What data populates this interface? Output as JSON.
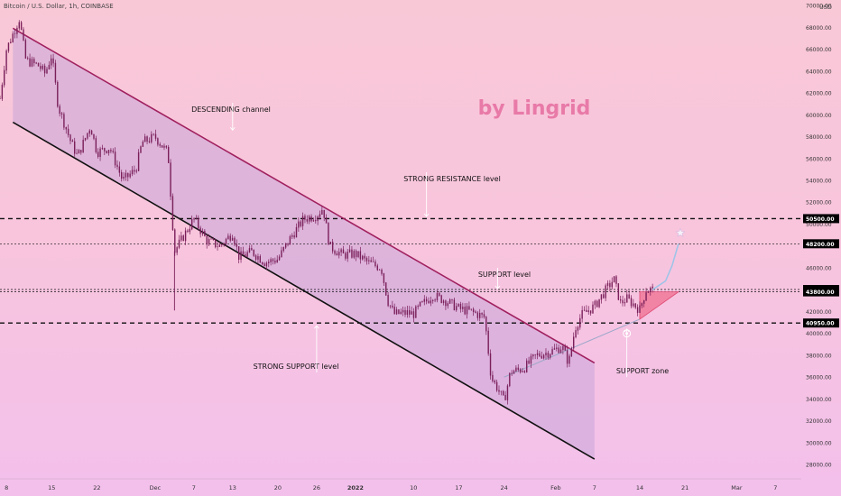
{
  "header": {
    "symbol_line": "Bitcoin / U.S. Dollar, 1h, COINBASE",
    "currency": "USD"
  },
  "watermark": {
    "text": "by Lingrid",
    "color": "#e87aa8"
  },
  "colors": {
    "candle": "#7a1f5a",
    "channel_upper": "#a0205f",
    "channel_lower": "#111111",
    "channel_fill": "#c9a6d8",
    "triangle": "#ef6f8f",
    "projection": "#9fc4e8"
  },
  "chart_data": {
    "type": "candlestick",
    "instrument": "Bitcoin / U.S. Dollar",
    "interval": "1h",
    "exchange": "COINBASE",
    "ylim": [
      27600,
      70500
    ],
    "y_ticks": [
      28000,
      30000,
      32000,
      34000,
      36000,
      38000,
      40000,
      42000,
      44000,
      46000,
      48000,
      50000,
      52000,
      54000,
      56000,
      58000,
      60000,
      62000,
      64000,
      66000,
      68000,
      70000
    ],
    "y_tick_labels": [
      "28000.00",
      "30000.00",
      "32000.00",
      "34000.00",
      "36000.00",
      "38000.00",
      "40000.00",
      "42000.00",
      "44000.00",
      "46000.00",
      "48000.00",
      "50000.00",
      "52000.00",
      "54000.00",
      "56000.00",
      "58000.00",
      "60000.00",
      "62000.00",
      "64000.00",
      "66000.00",
      "68000.00",
      "70000.00"
    ],
    "x_ticks": [
      {
        "label": "8",
        "date": "2021-11-08"
      },
      {
        "label": "15",
        "date": "2021-11-15"
      },
      {
        "label": "22",
        "date": "2021-11-22"
      },
      {
        "label": "Dec",
        "date": "2021-12-01"
      },
      {
        "label": "7",
        "date": "2021-12-07"
      },
      {
        "label": "13",
        "date": "2021-12-13"
      },
      {
        "label": "20",
        "date": "2021-12-20"
      },
      {
        "label": "26",
        "date": "2021-12-26"
      },
      {
        "label": "2022",
        "date": "2022-01-01"
      },
      {
        "label": "10",
        "date": "2022-01-10"
      },
      {
        "label": "17",
        "date": "2022-01-17"
      },
      {
        "label": "24",
        "date": "2022-01-24"
      },
      {
        "label": "Feb",
        "date": "2022-02-01"
      },
      {
        "label": "7",
        "date": "2022-02-07"
      },
      {
        "label": "14",
        "date": "2022-02-14"
      },
      {
        "label": "21",
        "date": "2022-02-21"
      },
      {
        "label": "Mar",
        "date": "2022-03-01"
      },
      {
        "label": "7",
        "date": "2022-03-07"
      }
    ],
    "price_series": {
      "name": "BTCUSD",
      "points": [
        {
          "date": "2021-11-07",
          "price": 61500
        },
        {
          "date": "2021-11-08",
          "price": 66000
        },
        {
          "date": "2021-11-10",
          "price": 68800
        },
        {
          "date": "2021-11-11",
          "price": 65000
        },
        {
          "date": "2021-11-13",
          "price": 64500
        },
        {
          "date": "2021-11-14",
          "price": 63800
        },
        {
          "date": "2021-11-15",
          "price": 65500
        },
        {
          "date": "2021-11-16",
          "price": 60800
        },
        {
          "date": "2021-11-18",
          "price": 57500
        },
        {
          "date": "2021-11-19",
          "price": 56200
        },
        {
          "date": "2021-11-21",
          "price": 59000
        },
        {
          "date": "2021-11-22",
          "price": 56600
        },
        {
          "date": "2021-11-24",
          "price": 57000
        },
        {
          "date": "2021-11-26",
          "price": 54000
        },
        {
          "date": "2021-11-28",
          "price": 55000
        },
        {
          "date": "2021-11-29",
          "price": 57500
        },
        {
          "date": "2021-12-01",
          "price": 58000
        },
        {
          "date": "2021-12-03",
          "price": 56500
        },
        {
          "date": "2021-12-04",
          "price": 47500
        },
        {
          "date": "2021-12-05",
          "price": 48500
        },
        {
          "date": "2021-12-07",
          "price": 50500
        },
        {
          "date": "2021-12-09",
          "price": 48500
        },
        {
          "date": "2021-12-11",
          "price": 48000
        },
        {
          "date": "2021-12-13",
          "price": 49200
        },
        {
          "date": "2021-12-14",
          "price": 47000
        },
        {
          "date": "2021-12-16",
          "price": 47500
        },
        {
          "date": "2021-12-18",
          "price": 46500
        },
        {
          "date": "2021-12-20",
          "price": 46800
        },
        {
          "date": "2021-12-22",
          "price": 48800
        },
        {
          "date": "2021-12-24",
          "price": 50500
        },
        {
          "date": "2021-12-26",
          "price": 50800
        },
        {
          "date": "2021-12-27",
          "price": 51500
        },
        {
          "date": "2021-12-28",
          "price": 48000
        },
        {
          "date": "2021-12-30",
          "price": 47200
        },
        {
          "date": "2022-01-01",
          "price": 47300
        },
        {
          "date": "2022-01-03",
          "price": 46500
        },
        {
          "date": "2022-01-05",
          "price": 46000
        },
        {
          "date": "2022-01-06",
          "price": 43000
        },
        {
          "date": "2022-01-07",
          "price": 41800
        },
        {
          "date": "2022-01-09",
          "price": 41900
        },
        {
          "date": "2022-01-10",
          "price": 41800
        },
        {
          "date": "2022-01-11",
          "price": 42500
        },
        {
          "date": "2022-01-13",
          "price": 43500
        },
        {
          "date": "2022-01-15",
          "price": 43000
        },
        {
          "date": "2022-01-17",
          "price": 42300
        },
        {
          "date": "2022-01-19",
          "price": 42000
        },
        {
          "date": "2022-01-21",
          "price": 41500
        },
        {
          "date": "2022-01-22",
          "price": 36000
        },
        {
          "date": "2022-01-23",
          "price": 35000
        },
        {
          "date": "2022-01-24",
          "price": 33800
        },
        {
          "date": "2022-01-25",
          "price": 36500
        },
        {
          "date": "2022-01-27",
          "price": 36800
        },
        {
          "date": "2022-01-29",
          "price": 38000
        },
        {
          "date": "2022-01-31",
          "price": 38300
        },
        {
          "date": "2022-02-02",
          "price": 38800
        },
        {
          "date": "2022-02-03",
          "price": 37300
        },
        {
          "date": "2022-02-04",
          "price": 40500
        },
        {
          "date": "2022-02-05",
          "price": 41700
        },
        {
          "date": "2022-02-07",
          "price": 42500
        },
        {
          "date": "2022-02-09",
          "price": 44200
        },
        {
          "date": "2022-02-10",
          "price": 45000
        },
        {
          "date": "2022-02-11",
          "price": 42800
        },
        {
          "date": "2022-02-12",
          "price": 43200
        },
        {
          "date": "2022-02-14",
          "price": 42200
        },
        {
          "date": "2022-02-15",
          "price": 44000
        },
        {
          "date": "2022-02-16",
          "price": 44015.25
        }
      ]
    },
    "horizontal_levels": [
      {
        "value": 50500,
        "label": "50500.00",
        "style": "dashed"
      },
      {
        "value": 48200,
        "label": "48200.00",
        "style": "dotted"
      },
      {
        "value": 44015.25,
        "label": "44015.25",
        "style": "dotted"
      },
      {
        "value": 43800,
        "label": "43800.00",
        "style": "dotted"
      },
      {
        "value": 40950,
        "label": "40950.00",
        "style": "dashed"
      }
    ],
    "channel": {
      "upper": [
        {
          "date": "2021-11-07",
          "price": 68600
        },
        {
          "date": "2022-02-07",
          "price": 37300
        }
      ],
      "lower": [
        {
          "date": "2021-11-07",
          "price": 60000
        },
        {
          "date": "2022-02-07",
          "price": 28500
        }
      ]
    },
    "support_trendline": [
      {
        "date": "2022-01-24",
        "price": 36000
      },
      {
        "date": "2022-02-14",
        "price": 41300
      }
    ],
    "triangle": [
      {
        "date": "2022-02-14",
        "price": 41300
      },
      {
        "date": "2022-02-14",
        "price": 43800
      },
      {
        "date": "2022-02-20",
        "price": 43800
      }
    ],
    "projection": [
      {
        "date": "2022-02-16",
        "price": 44000
      },
      {
        "date": "2022-02-18",
        "price": 44800
      },
      {
        "date": "2022-02-19",
        "price": 46200
      },
      {
        "date": "2022-02-20",
        "price": 48200
      }
    ],
    "annotations": [
      {
        "text": "DESCENDING channel",
        "arrow_to": {
          "date": "2021-12-13",
          "price": 58600
        }
      },
      {
        "text": "STRONG RESISTANCE level",
        "arrow_to": {
          "date": "2022-01-12",
          "price": 50700
        }
      },
      {
        "text": "SUPPORT level",
        "arrow_to": {
          "date": "2022-01-23",
          "price": 44100
        }
      },
      {
        "text": "STRONG SUPPORT level",
        "arrow_to": {
          "date": "2021-12-26",
          "price": 40700
        }
      },
      {
        "text": "SUPPORT zone",
        "arrow_to": {
          "date": "2022-02-12",
          "price": 40400
        }
      }
    ]
  }
}
